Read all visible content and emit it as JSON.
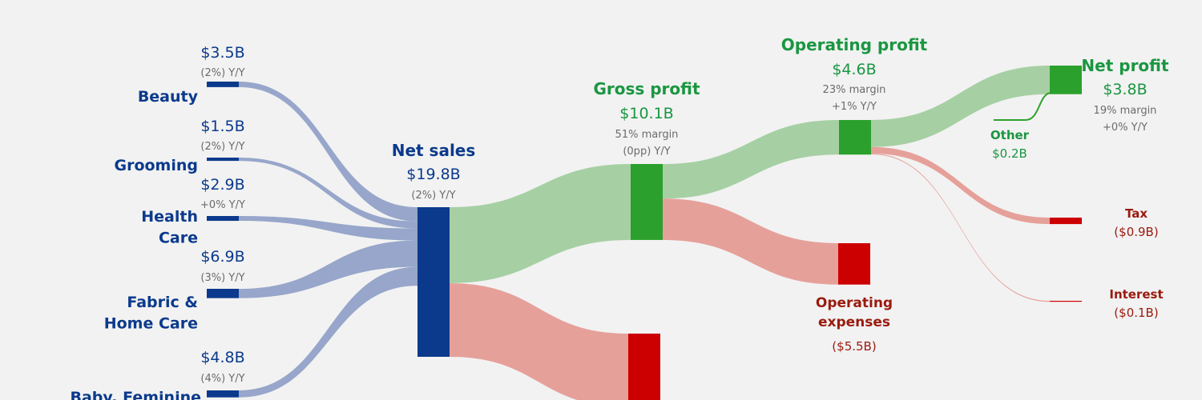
{
  "chart_data": {
    "type": "sankey",
    "colors": {
      "revenue_node": "#0b3a8c",
      "revenue_flow": "#97a6ca",
      "profit_node": "#2ca02c",
      "profit_flow": "#a6d0a3",
      "cost_node": "#cc0000",
      "cost_flow": "#e6a09a",
      "label_blue": "#0b3a8c",
      "label_green": "#1a9641",
      "label_red": "#9a1a0e",
      "label_grey": "#6b6b6b"
    },
    "segments": [
      {
        "name": "Beauty",
        "value": 3.5,
        "value_label": "$3.5B",
        "yoy": "(2%) Y/Y"
      },
      {
        "name": "Grooming",
        "value": 1.5,
        "value_label": "$1.5B",
        "yoy": "(2%) Y/Y"
      },
      {
        "name": "Health Care",
        "value": 2.9,
        "value_label": "$2.9B",
        "yoy": "+0% Y/Y"
      },
      {
        "name": "Fabric & Home Care",
        "value": 6.9,
        "value_label": "$6.9B",
        "yoy": "(3%) Y/Y"
      },
      {
        "name": "Baby, Feminine",
        "value": 4.8,
        "value_label": "$4.8B",
        "yoy": "(4%) Y/Y"
      }
    ],
    "net_sales": {
      "name": "Net sales",
      "value": 19.8,
      "value_label": "$19.8B",
      "yoy": "(2%) Y/Y"
    },
    "gross_profit": {
      "name": "Gross profit",
      "value": 10.1,
      "value_label": "$10.1B",
      "margin": "51% margin",
      "yoy": "(0pp) Y/Y"
    },
    "operating_profit": {
      "name": "Operating profit",
      "value": 4.6,
      "value_label": "$4.6B",
      "margin": "23% margin",
      "yoy": "+1% Y/Y"
    },
    "operating_expenses": {
      "name": "Operating expenses",
      "value": 5.5,
      "value_label": "($5.5B)"
    },
    "net_profit": {
      "name": "Net profit",
      "value": 3.8,
      "value_label": "$3.8B",
      "margin": "19% margin",
      "yoy": "+0% Y/Y"
    },
    "other": {
      "name": "Other",
      "value": 0.2,
      "value_label": "$0.2B"
    },
    "tax": {
      "name": "Tax",
      "value": 0.9,
      "value_label": "($0.9B)"
    },
    "interest": {
      "name": "Interest",
      "value": 0.1,
      "value_label": "($0.1B)"
    }
  }
}
